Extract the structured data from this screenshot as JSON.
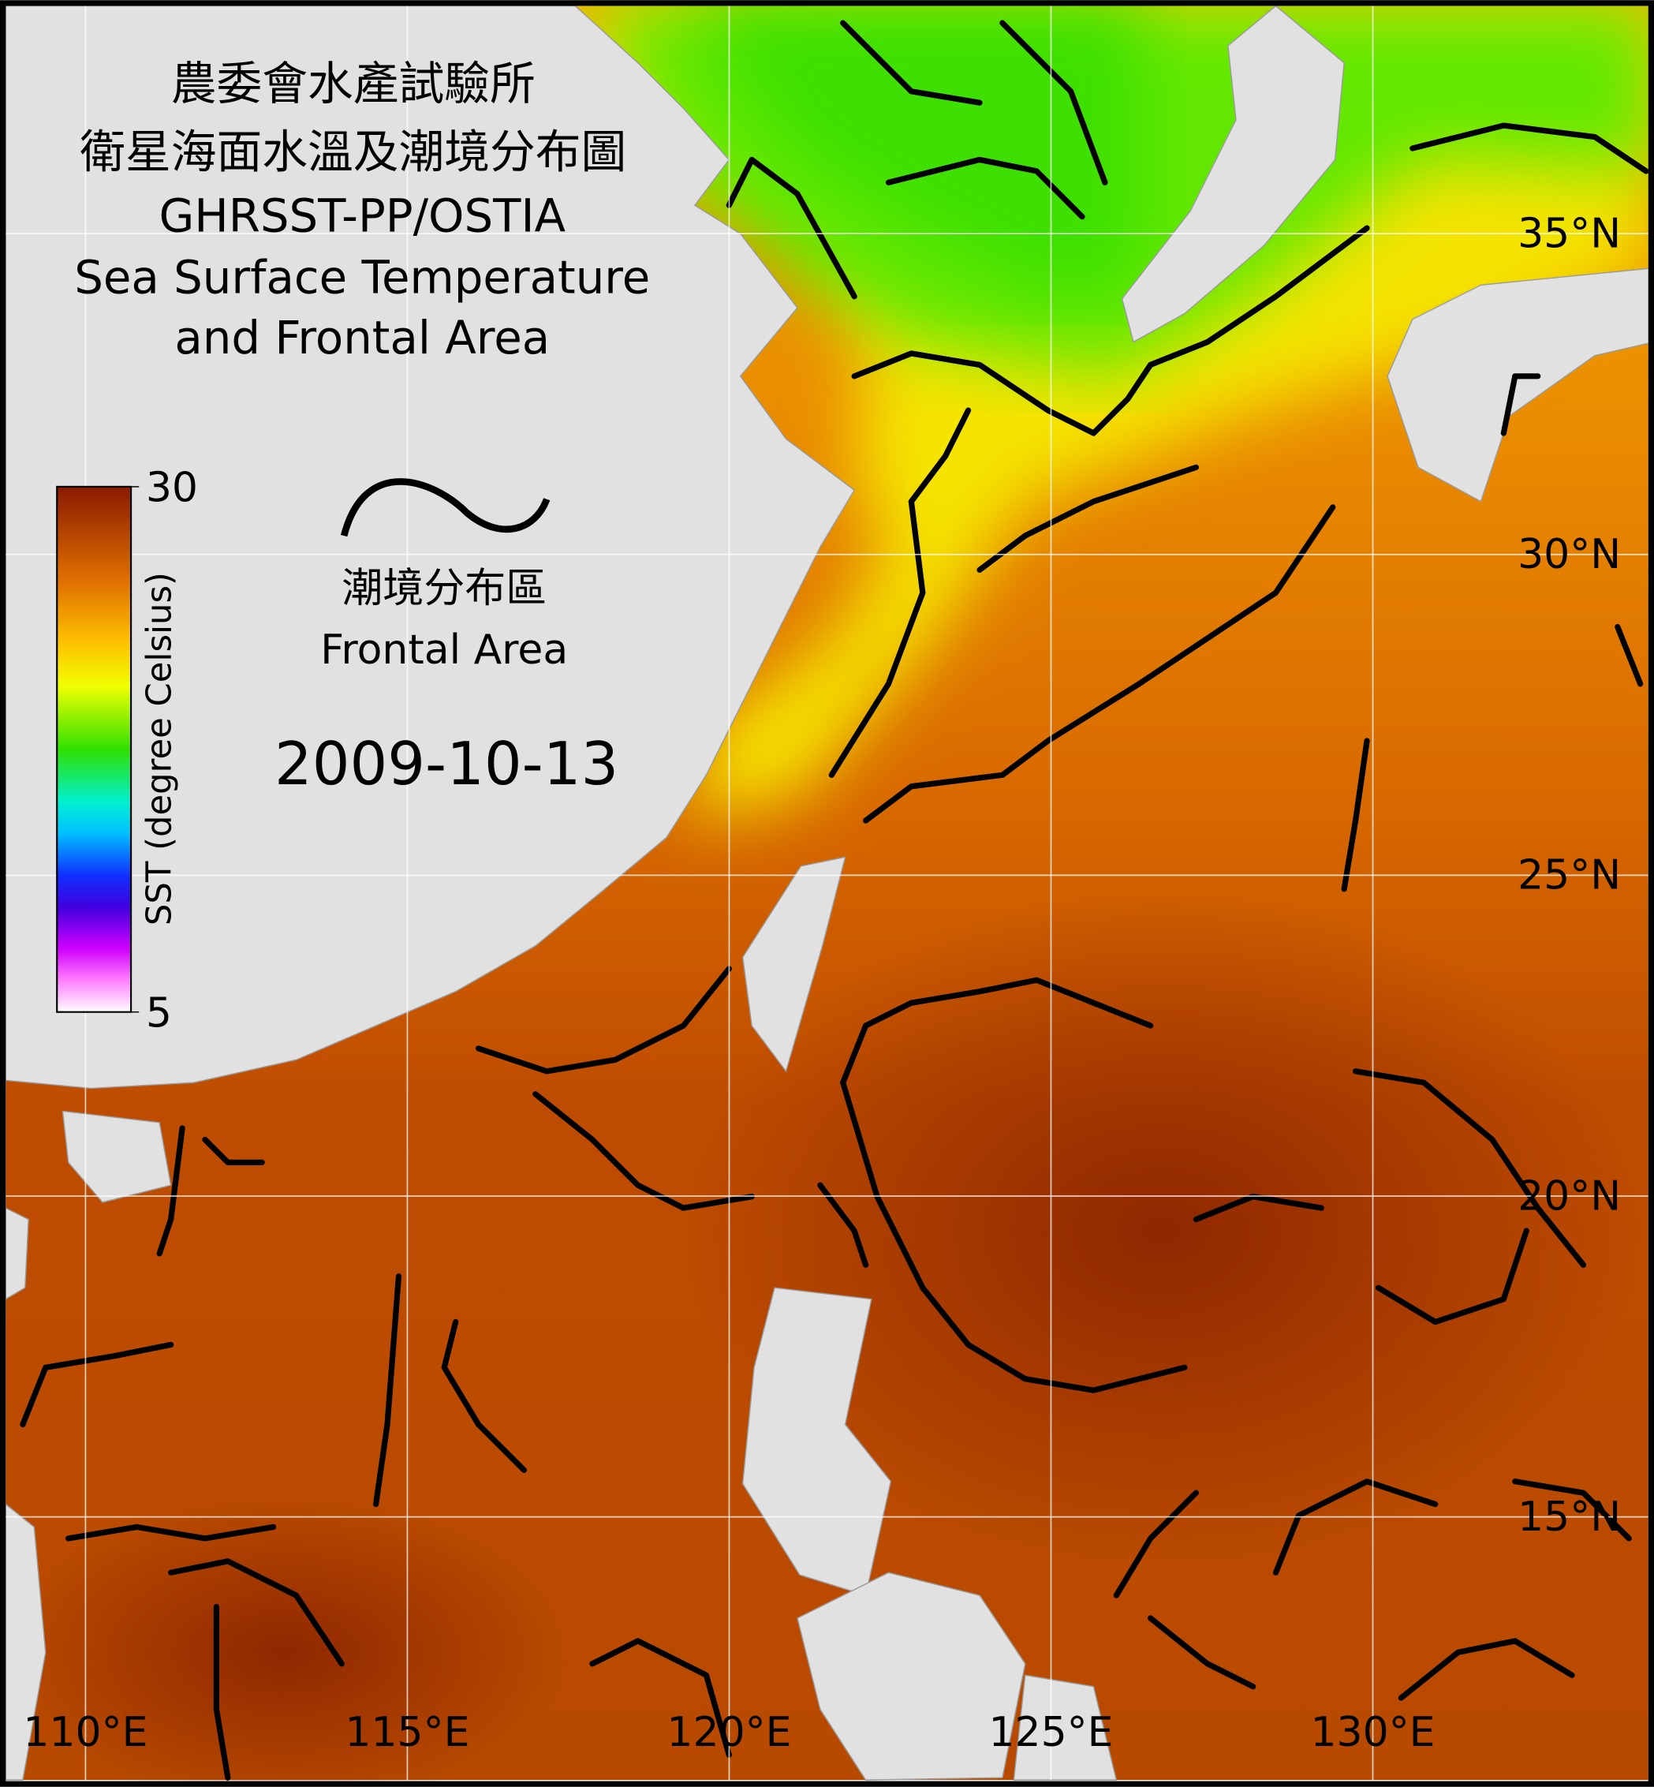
{
  "title_lines": [
    "農委會水產試驗所",
    "衛星海面水溫及潮境分布圖",
    "GHRSST-PP/OSTIA",
    "Sea Surface Temperature",
    "and Frontal Area"
  ],
  "date": "2009-10-13",
  "legend": {
    "label_zh": "潮境分布區",
    "label_en": "Frontal Area"
  },
  "colorbar": {
    "label": "SST (degree Celsius)",
    "lim": [
      5,
      30
    ],
    "ticks": [
      30,
      5
    ]
  },
  "map": {
    "xlim": [
      108.76,
      134.28
    ],
    "ylim": [
      10.9,
      38.55
    ],
    "xticks": [
      {
        "value": 110,
        "label": "110°E"
      },
      {
        "value": 115,
        "label": "115°E"
      },
      {
        "value": 120,
        "label": "120°E"
      },
      {
        "value": 125,
        "label": "125°E"
      },
      {
        "value": 130,
        "label": "130°E"
      }
    ],
    "yticks": [
      {
        "value": 15,
        "label": "15°N"
      },
      {
        "value": 20,
        "label": "20°N"
      },
      {
        "value": 25,
        "label": "25°N"
      },
      {
        "value": 30,
        "label": "30°N"
      },
      {
        "value": 35,
        "label": "35°N"
      }
    ],
    "grid": true
  }
}
